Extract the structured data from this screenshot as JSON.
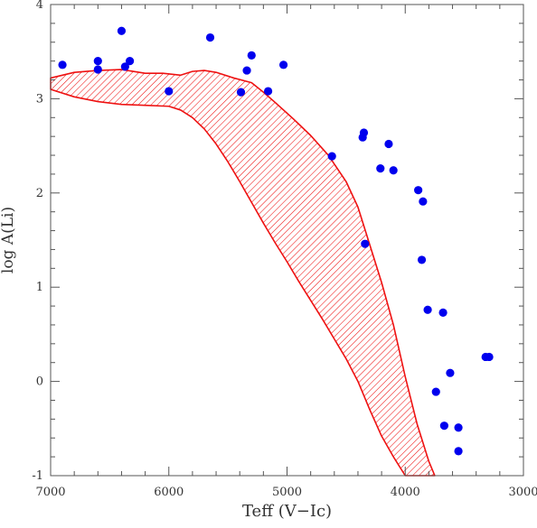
{
  "chart_data": {
    "type": "scatter",
    "xlabel": "Teff (V−Ic)",
    "ylabel": "log A(Li)",
    "x_reversed": true,
    "xlim": [
      7000,
      3000
    ],
    "ylim": [
      -1,
      4
    ],
    "x_ticks": [
      7000,
      6000,
      5000,
      4000,
      3000
    ],
    "y_ticks": [
      -1,
      0,
      1,
      2,
      3,
      4
    ],
    "x_tick_labels": [
      "7000",
      "6000",
      "5000",
      "4000",
      "3000"
    ],
    "y_tick_labels": [
      "-1",
      "0",
      "1",
      "2",
      "3",
      "4"
    ],
    "x_minor_step": 200,
    "y_minor_step": 0.2,
    "grid": false,
    "colors": {
      "points": "#0000ee",
      "band": "#ee1111",
      "axis": "#555555"
    },
    "series": [
      {
        "type": "scatter",
        "values": [
          [
            6900,
            3.36
          ],
          [
            6600,
            3.4
          ],
          [
            6600,
            3.31
          ],
          [
            6400,
            3.72
          ],
          [
            6370,
            3.34
          ],
          [
            6330,
            3.4
          ],
          [
            6000,
            3.08
          ],
          [
            5650,
            3.65
          ],
          [
            5390,
            3.07
          ],
          [
            5340,
            3.3
          ],
          [
            5300,
            3.46
          ],
          [
            5160,
            3.08
          ],
          [
            5030,
            3.36
          ],
          [
            4620,
            2.39
          ],
          [
            4360,
            2.59
          ],
          [
            4350,
            2.64
          ],
          [
            4340,
            1.46
          ],
          [
            4210,
            2.26
          ],
          [
            4140,
            2.52
          ],
          [
            4100,
            2.24
          ],
          [
            3890,
            2.03
          ],
          [
            3850,
            1.91
          ],
          [
            3860,
            1.29
          ],
          [
            3810,
            0.76
          ],
          [
            3680,
            0.73
          ],
          [
            3620,
            0.09
          ],
          [
            3740,
            -0.11
          ],
          [
            3670,
            -0.47
          ],
          [
            3550,
            -0.49
          ],
          [
            3550,
            -0.74
          ],
          [
            3320,
            0.26
          ],
          [
            3290,
            0.26
          ]
        ]
      },
      {
        "type": "area",
        "upper": [
          [
            7000,
            3.22
          ],
          [
            6800,
            3.28
          ],
          [
            6600,
            3.3
          ],
          [
            6400,
            3.31
          ],
          [
            6200,
            3.27
          ],
          [
            6050,
            3.27
          ],
          [
            5900,
            3.25
          ],
          [
            5800,
            3.29
          ],
          [
            5700,
            3.3
          ],
          [
            5600,
            3.28
          ],
          [
            5450,
            3.22
          ],
          [
            5300,
            3.17
          ],
          [
            5200,
            3.07
          ],
          [
            5100,
            2.96
          ],
          [
            4950,
            2.79
          ],
          [
            4800,
            2.61
          ],
          [
            4650,
            2.4
          ],
          [
            4500,
            2.12
          ],
          [
            4400,
            1.85
          ],
          [
            4300,
            1.45
          ],
          [
            4200,
            1.05
          ],
          [
            4100,
            0.6
          ],
          [
            4000,
            0.05
          ],
          [
            3900,
            -0.45
          ],
          [
            3800,
            -0.85
          ],
          [
            3750,
            -1.0
          ]
        ],
        "lower": [
          [
            7000,
            3.1
          ],
          [
            6800,
            3.02
          ],
          [
            6600,
            2.97
          ],
          [
            6400,
            2.94
          ],
          [
            6200,
            2.93
          ],
          [
            6000,
            2.92
          ],
          [
            5900,
            2.88
          ],
          [
            5800,
            2.8
          ],
          [
            5700,
            2.68
          ],
          [
            5600,
            2.52
          ],
          [
            5500,
            2.33
          ],
          [
            5400,
            2.12
          ],
          [
            5300,
            1.9
          ],
          [
            5200,
            1.68
          ],
          [
            5100,
            1.47
          ],
          [
            5000,
            1.27
          ],
          [
            4900,
            1.06
          ],
          [
            4800,
            0.86
          ],
          [
            4700,
            0.66
          ],
          [
            4600,
            0.45
          ],
          [
            4500,
            0.24
          ],
          [
            4400,
            0.0
          ],
          [
            4300,
            -0.3
          ],
          [
            4200,
            -0.58
          ],
          [
            4100,
            -0.8
          ],
          [
            4000,
            -1.0
          ]
        ]
      }
    ]
  }
}
